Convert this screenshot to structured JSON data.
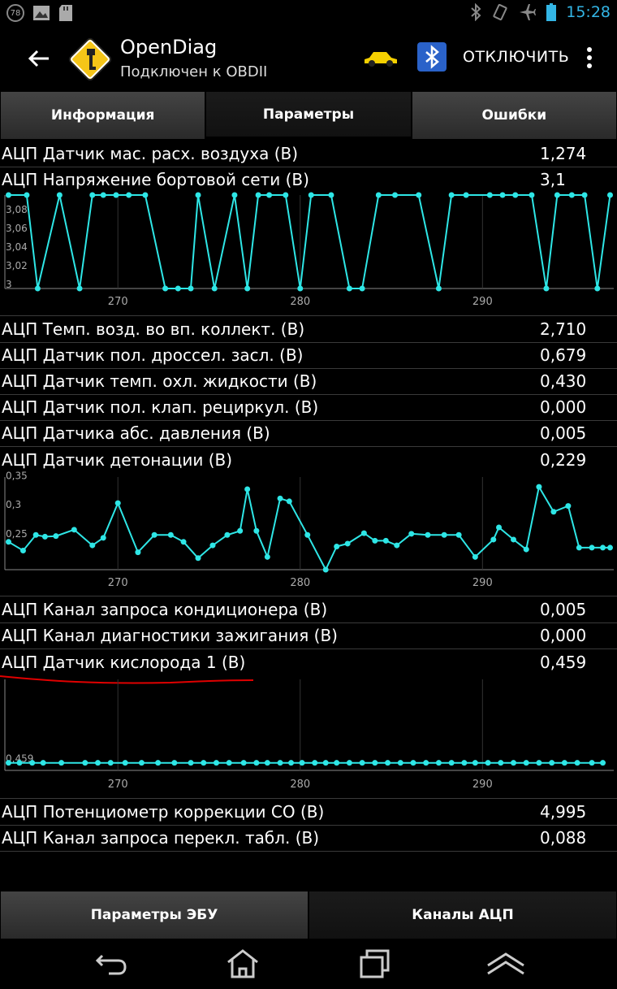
{
  "status_bar": {
    "notification_badge": "78",
    "time": "15:28",
    "icons_left": [
      "notification-counter-icon",
      "image-icon",
      "sd-card-icon"
    ],
    "icons_right": [
      "bluetooth-icon",
      "rotation-icon",
      "airplane-icon",
      "battery-icon"
    ]
  },
  "app": {
    "title": "OpenDiag",
    "subtitle": "Подключен к OBDII",
    "disconnect_label": "ОТКЛЮЧИТЬ"
  },
  "tabs": [
    {
      "label": "Информация",
      "active": false
    },
    {
      "label": "Параметры",
      "active": true
    },
    {
      "label": "Ошибки",
      "active": false
    }
  ],
  "params": [
    {
      "name": "АЦП Датчик мас. расх. воздуха (В)",
      "value": "1,274"
    },
    {
      "name": "АЦП Напряжение бортовой сети (В)",
      "value": "3,1"
    },
    {
      "name": "АЦП Темп. возд. во вп. коллект. (В)",
      "value": "2,710"
    },
    {
      "name": "АЦП Датчик пол. дроссел. засл. (В)",
      "value": "0,679"
    },
    {
      "name": "АЦП Датчик темп. охл. жидкости (В)",
      "value": "0,430"
    },
    {
      "name": "АЦП Датчик пол. клап. рециркул. (В)",
      "value": "0,000"
    },
    {
      "name": "АЦП Датчика абс. давления (В)",
      "value": "0,005"
    },
    {
      "name": "АЦП Датчик детонации (В)",
      "value": "0,229"
    },
    {
      "name": "АЦП Канал запроса кондиционера (В)",
      "value": "0,005"
    },
    {
      "name": "АЦП Канал диагностики зажигания (В)",
      "value": "0,000"
    },
    {
      "name": "АЦП Датчик кислорода 1 (В)",
      "value": "0,459"
    },
    {
      "name": "АЦП Потенциометр коррекции СО (В)",
      "value": "4,995"
    },
    {
      "name": "АЦП Канал запроса перекл. табл. (В)",
      "value": "0,088"
    }
  ],
  "chart_data": [
    {
      "type": "line",
      "color": "#2ee6e6",
      "x_ticks": [
        "270",
        "280",
        "290"
      ],
      "y_ticks": [
        "3,08",
        "3,06",
        "3,04",
        "3,02",
        "3"
      ],
      "xlim": [
        263.8,
        297.2
      ],
      "ylim": [
        3.0,
        3.1
      ],
      "x": [
        264,
        265,
        265.6,
        266.8,
        267.9,
        268.6,
        269.2,
        269.9,
        270.6,
        271.5,
        272.6,
        273.3,
        274,
        274.4,
        275.3,
        276.4,
        277.1,
        277.7,
        278.3,
        279.2,
        280,
        280.6,
        281.7,
        282.7,
        283.4,
        284.3,
        285.2,
        286.5,
        287.6,
        288.3,
        289.1,
        290.4,
        291.1,
        291.8,
        292.7,
        293.5,
        294.1,
        294.9,
        295.6,
        296.3,
        297
      ],
      "y": [
        3.1,
        3.1,
        3.0,
        3.1,
        3.0,
        3.1,
        3.1,
        3.1,
        3.1,
        3.1,
        3.0,
        3.0,
        3.0,
        3.1,
        3.0,
        3.1,
        3.0,
        3.1,
        3.1,
        3.1,
        3.0,
        3.1,
        3.1,
        3.0,
        3.0,
        3.1,
        3.1,
        3.1,
        3.0,
        3.1,
        3.1,
        3.1,
        3.1,
        3.1,
        3.1,
        3.0,
        3.1,
        3.1,
        3.1,
        3.0,
        3.1
      ]
    },
    {
      "type": "line",
      "color": "#2ee6e6",
      "x_ticks": [
        "270",
        "280",
        "290"
      ],
      "y_ticks": [
        "0,35",
        "0,3",
        "0,25"
      ],
      "xlim": [
        263.8,
        297.2
      ],
      "ylim": [
        0.195,
        0.355
      ],
      "x": [
        264,
        264.8,
        265.5,
        266,
        266.6,
        267.6,
        268.6,
        269.2,
        270,
        271.1,
        272,
        272.9,
        273.6,
        274.4,
        275.2,
        276,
        276.7,
        277.1,
        277.6,
        278.2,
        278.9,
        279.4,
        280.4,
        281.4,
        282,
        282.6,
        283.5,
        284.1,
        284.7,
        285.3,
        286.1,
        287,
        287.9,
        288.7,
        289.6,
        290.6,
        290.9,
        291.7,
        292.4,
        293.1,
        293.9,
        294.7,
        295.3,
        296,
        296.6,
        297
      ],
      "y": [
        0.243,
        0.228,
        0.255,
        0.252,
        0.253,
        0.264,
        0.237,
        0.25,
        0.31,
        0.225,
        0.255,
        0.255,
        0.243,
        0.215,
        0.237,
        0.255,
        0.262,
        0.334,
        0.262,
        0.217,
        0.318,
        0.313,
        0.255,
        0.195,
        0.235,
        0.24,
        0.258,
        0.245,
        0.245,
        0.237,
        0.257,
        0.255,
        0.255,
        0.255,
        0.217,
        0.247,
        0.268,
        0.247,
        0.23,
        0.338,
        0.295,
        0.305,
        0.233,
        0.233,
        0.233,
        0.233
      ]
    },
    {
      "type": "line",
      "color": "#2ee6e6",
      "x_ticks": [
        "270",
        "280",
        "290"
      ],
      "y_ticks": [
        "0,459"
      ],
      "xlim": [
        263.8,
        297.2
      ],
      "ylim": [
        0.458,
        0.47
      ],
      "x": [
        264,
        264.6,
        265.3,
        265.9,
        266.9,
        268.2,
        268.9,
        269.6,
        270.4,
        271.3,
        272.2,
        273.1,
        274,
        274.7,
        275.4,
        276.1,
        276.9,
        277.6,
        278.2,
        278.9,
        279.5,
        280.1,
        280.8,
        281.4,
        282,
        282.7,
        283.4,
        284.1,
        284.8,
        285.5,
        286.2,
        286.9,
        287.6,
        288.3,
        289,
        289.6,
        290.3,
        291,
        291.7,
        292.4,
        293.1,
        293.8,
        294.5,
        295.2,
        296,
        296.6
      ],
      "y": [
        0.459,
        0.459,
        0.459,
        0.459,
        0.459,
        0.459,
        0.459,
        0.459,
        0.459,
        0.459,
        0.459,
        0.459,
        0.459,
        0.459,
        0.459,
        0.459,
        0.459,
        0.459,
        0.459,
        0.459,
        0.459,
        0.459,
        0.459,
        0.459,
        0.459,
        0.459,
        0.459,
        0.459,
        0.459,
        0.459,
        0.459,
        0.459,
        0.459,
        0.459,
        0.459,
        0.459,
        0.459,
        0.459,
        0.459,
        0.459,
        0.459,
        0.459,
        0.459,
        0.459,
        0.459,
        0.459
      ]
    }
  ],
  "bottom_tabs": [
    {
      "label": "Параметры ЭБУ",
      "active": false
    },
    {
      "label": "Каналы АЦП",
      "active": true
    }
  ],
  "navbar": {
    "icons": [
      "back-icon",
      "home-icon",
      "recent-apps-icon",
      "menu-up-icon"
    ]
  }
}
